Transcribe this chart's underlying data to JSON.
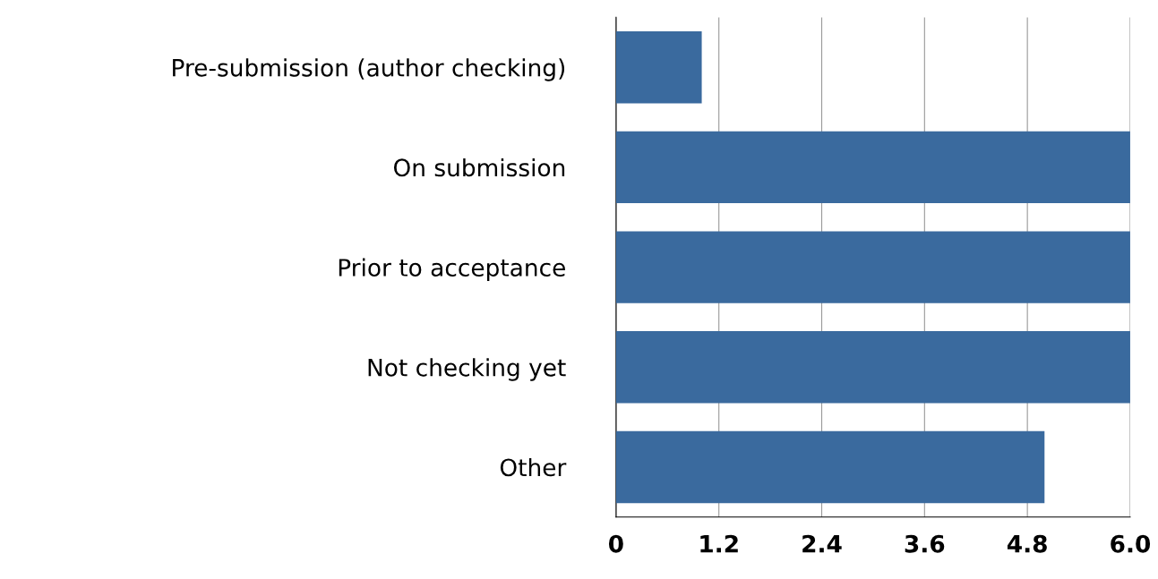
{
  "chart_data": {
    "type": "bar",
    "orientation": "horizontal",
    "categories": [
      "Pre-submission (author checking)",
      "On submission",
      "Prior to acceptance",
      "Not checking yet",
      "Other"
    ],
    "values": [
      1.0,
      6.0,
      6.0,
      6.0,
      5.0
    ],
    "color": "#3a6a9e",
    "xlim": [
      0,
      6
    ],
    "xticks": [
      0,
      1.2,
      2.4,
      3.6,
      4.8,
      {
        "value": 6,
        "label": "6.0"
      }
    ],
    "grid": "x",
    "legend": false
  }
}
